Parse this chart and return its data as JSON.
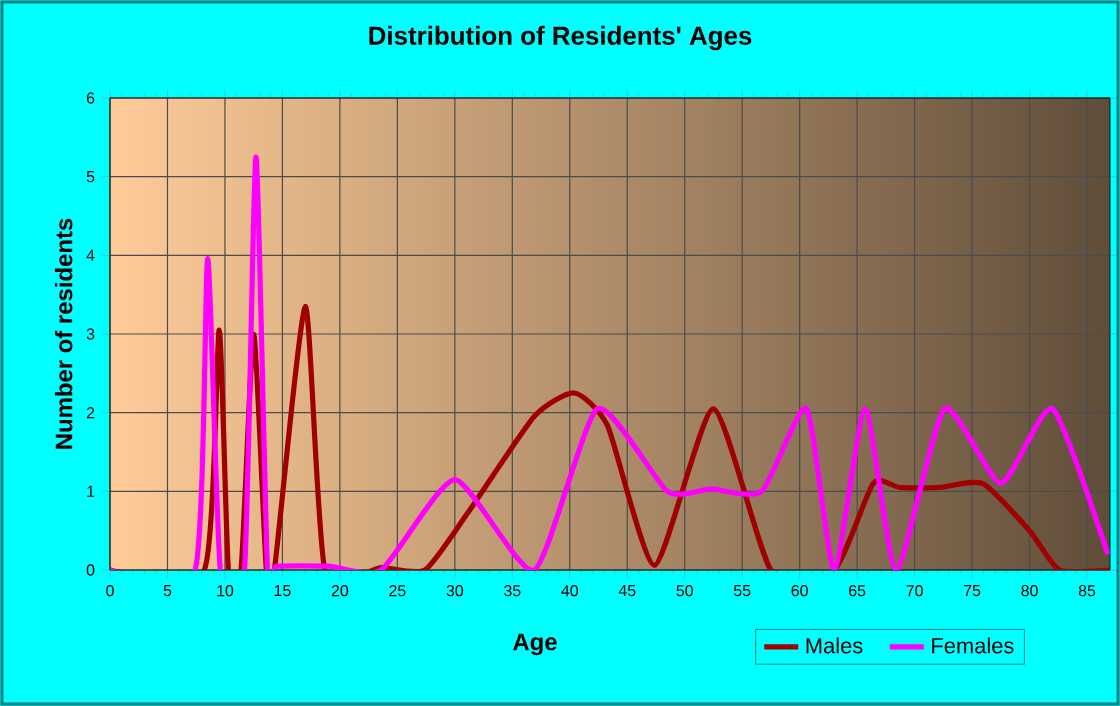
{
  "chart_data": {
    "type": "line",
    "title": "Distribution of Residents' Ages",
    "xlabel": "Age",
    "ylabel": "Number of residents",
    "xlim": [
      0,
      87
    ],
    "ylim": [
      0,
      6
    ],
    "xticks": [
      0,
      5,
      10,
      15,
      20,
      25,
      30,
      35,
      40,
      45,
      50,
      55,
      60,
      65,
      70,
      75,
      80,
      85
    ],
    "yticks": [
      0,
      1,
      2,
      3,
      4,
      5,
      6
    ],
    "grid": true,
    "legend": "bottom",
    "marker": "none",
    "line_style": "solid",
    "series": [
      {
        "name": "Males",
        "color": "#a00000",
        "x": [
          0,
          8.2,
          9.5,
          10.3,
          11.4,
          12.5,
          13.6,
          14.3,
          17.0,
          18.7,
          23.6,
          27.4,
          31.1,
          36.9,
          40.4,
          43.3,
          47.4,
          52.5,
          57.5,
          63.0,
          66.4,
          68.7,
          72.2,
          75.9,
          80.0,
          82.6,
          87
        ],
        "values": [
          0,
          0,
          3.05,
          0,
          0,
          3.0,
          0,
          0,
          3.35,
          0,
          0.03,
          0,
          0.72,
          1.95,
          2.25,
          1.83,
          0.06,
          2.05,
          0,
          0,
          1.1,
          1.05,
          1.05,
          1.1,
          0.5,
          0,
          0
        ]
      },
      {
        "name": "Females",
        "color": "#ff00ff",
        "x": [
          0,
          7.4,
          8.5,
          9.6,
          11.7,
          12.7,
          13.7,
          14.5,
          19,
          23.6,
          30,
          36.9,
          42.4,
          48.5,
          52.3,
          56.7,
          60.6,
          63.0,
          65.7,
          68.4,
          72.6,
          77.5,
          82.0,
          86.8
        ],
        "values": [
          0,
          0,
          3.96,
          0,
          0,
          5.25,
          0,
          0.05,
          0.05,
          0,
          1.15,
          0,
          2.05,
          1.0,
          1.03,
          1.0,
          2.05,
          0,
          2.05,
          0,
          2.05,
          1.1,
          2.05,
          0.2
        ]
      }
    ]
  }
}
